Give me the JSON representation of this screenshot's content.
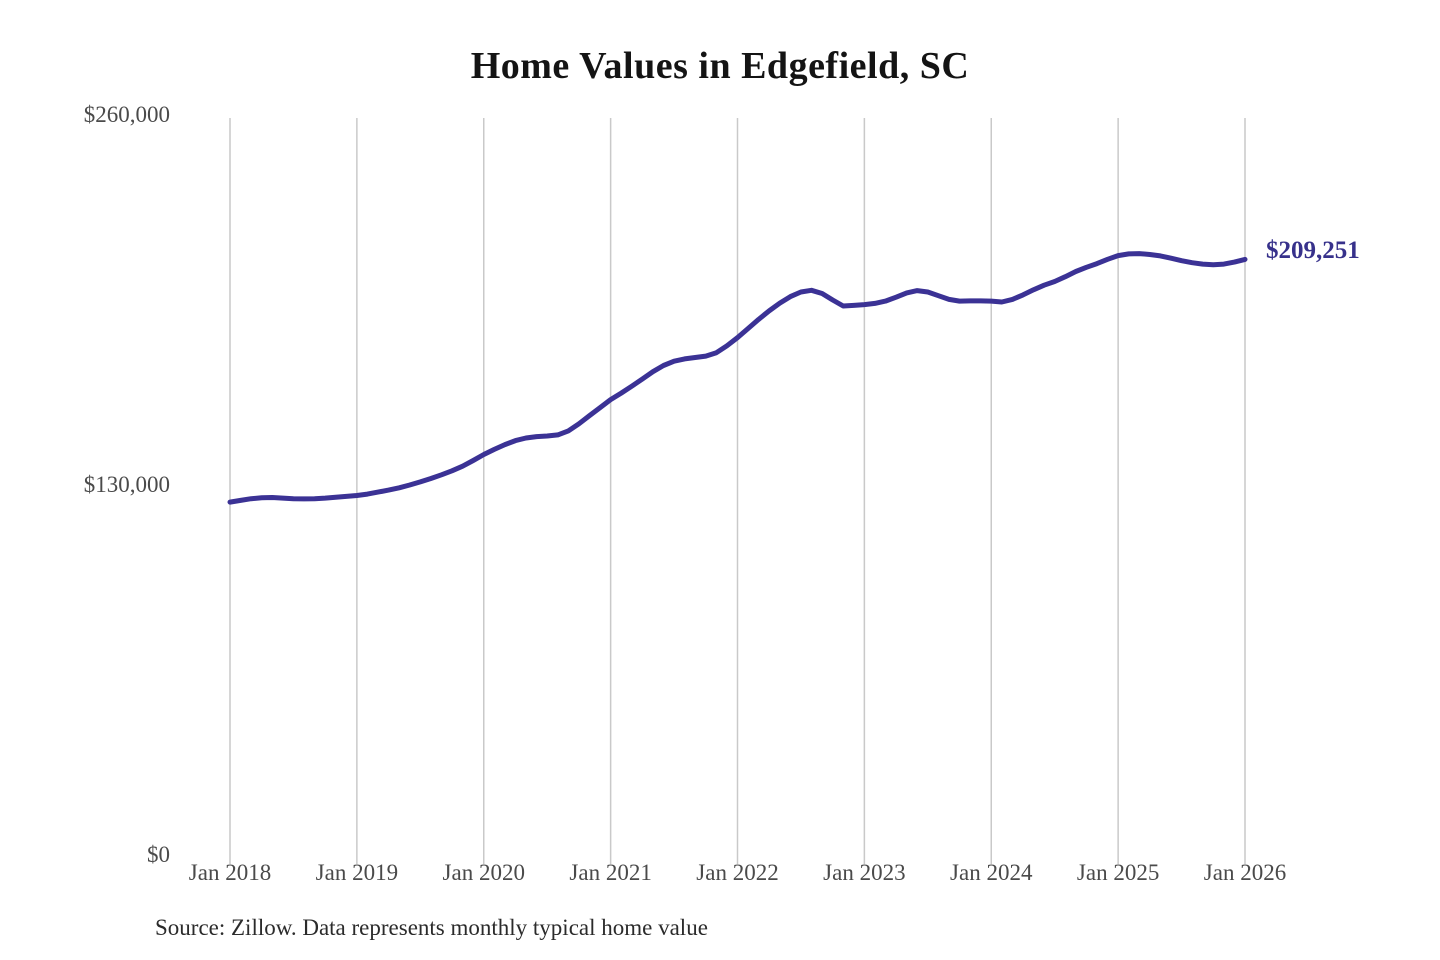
{
  "title": "Home Values in Edgefield, SC",
  "end_label": {
    "text": "$209,251",
    "value": 209251
  },
  "source_note": "Source: Zillow. Data represents monthly typical home value",
  "colors": {
    "line": "#3b3295",
    "grid": "#c9c9c9",
    "axis_text": "#4a4a4a",
    "title_text": "#141414",
    "source_text": "#2b2b2b",
    "end_label": "#37318b",
    "background": "#ffffff"
  },
  "chart_data": {
    "type": "line",
    "title": "Home Values in Edgefield, SC",
    "xlabel": "",
    "ylabel": "",
    "ylim": [
      0,
      260000
    ],
    "grid": "vertical-only",
    "legend_position": "none",
    "y_ticks": [
      {
        "value": 0,
        "label": "$0"
      },
      {
        "value": 130000,
        "label": "$130,000"
      },
      {
        "value": 260000,
        "label": "$260,000"
      }
    ],
    "x_ticks": [
      {
        "label": "Jan 2018",
        "month_index": 0
      },
      {
        "label": "Jan 2019",
        "month_index": 12
      },
      {
        "label": "Jan 2020",
        "month_index": 24
      },
      {
        "label": "Jan 2021",
        "month_index": 36
      },
      {
        "label": "Jan 2022",
        "month_index": 48
      },
      {
        "label": "Jan 2023",
        "month_index": 60
      },
      {
        "label": "Jan 2024",
        "month_index": 72
      },
      {
        "label": "Jan 2025",
        "month_index": 84
      },
      {
        "label": "Jan 2026",
        "month_index": 96
      }
    ],
    "series": [
      {
        "name": "Monthly typical home value",
        "start_month": "2018-01",
        "end_month": "2026-01",
        "interval": "monthly",
        "end_value": 209251,
        "values": [
          124000,
          124600,
          125200,
          125500,
          125600,
          125400,
          125200,
          125100,
          125200,
          125400,
          125700,
          126000,
          126300,
          126800,
          127500,
          128200,
          129000,
          130000,
          131100,
          132300,
          133600,
          135000,
          136600,
          138600,
          140700,
          142500,
          144200,
          145600,
          146500,
          147000,
          147200,
          147600,
          149000,
          151500,
          154400,
          157200,
          160000,
          162300,
          164700,
          167200,
          169800,
          172000,
          173500,
          174300,
          174800,
          175300,
          176500,
          178900,
          181800,
          185000,
          188200,
          191200,
          193900,
          196200,
          197800,
          198400,
          197300,
          195000,
          192900,
          193100,
          193400,
          193800,
          194600,
          196000,
          197500,
          198300,
          197800,
          196500,
          195200,
          194600,
          194700,
          194700,
          194600,
          194300,
          195200,
          196800,
          198600,
          200200,
          201500,
          203200,
          205000,
          206500,
          207800,
          209300,
          210600,
          211200,
          211300,
          211000,
          210500,
          209700,
          208800,
          208100,
          207600,
          207400,
          207600,
          208300,
          209251
        ]
      }
    ]
  }
}
